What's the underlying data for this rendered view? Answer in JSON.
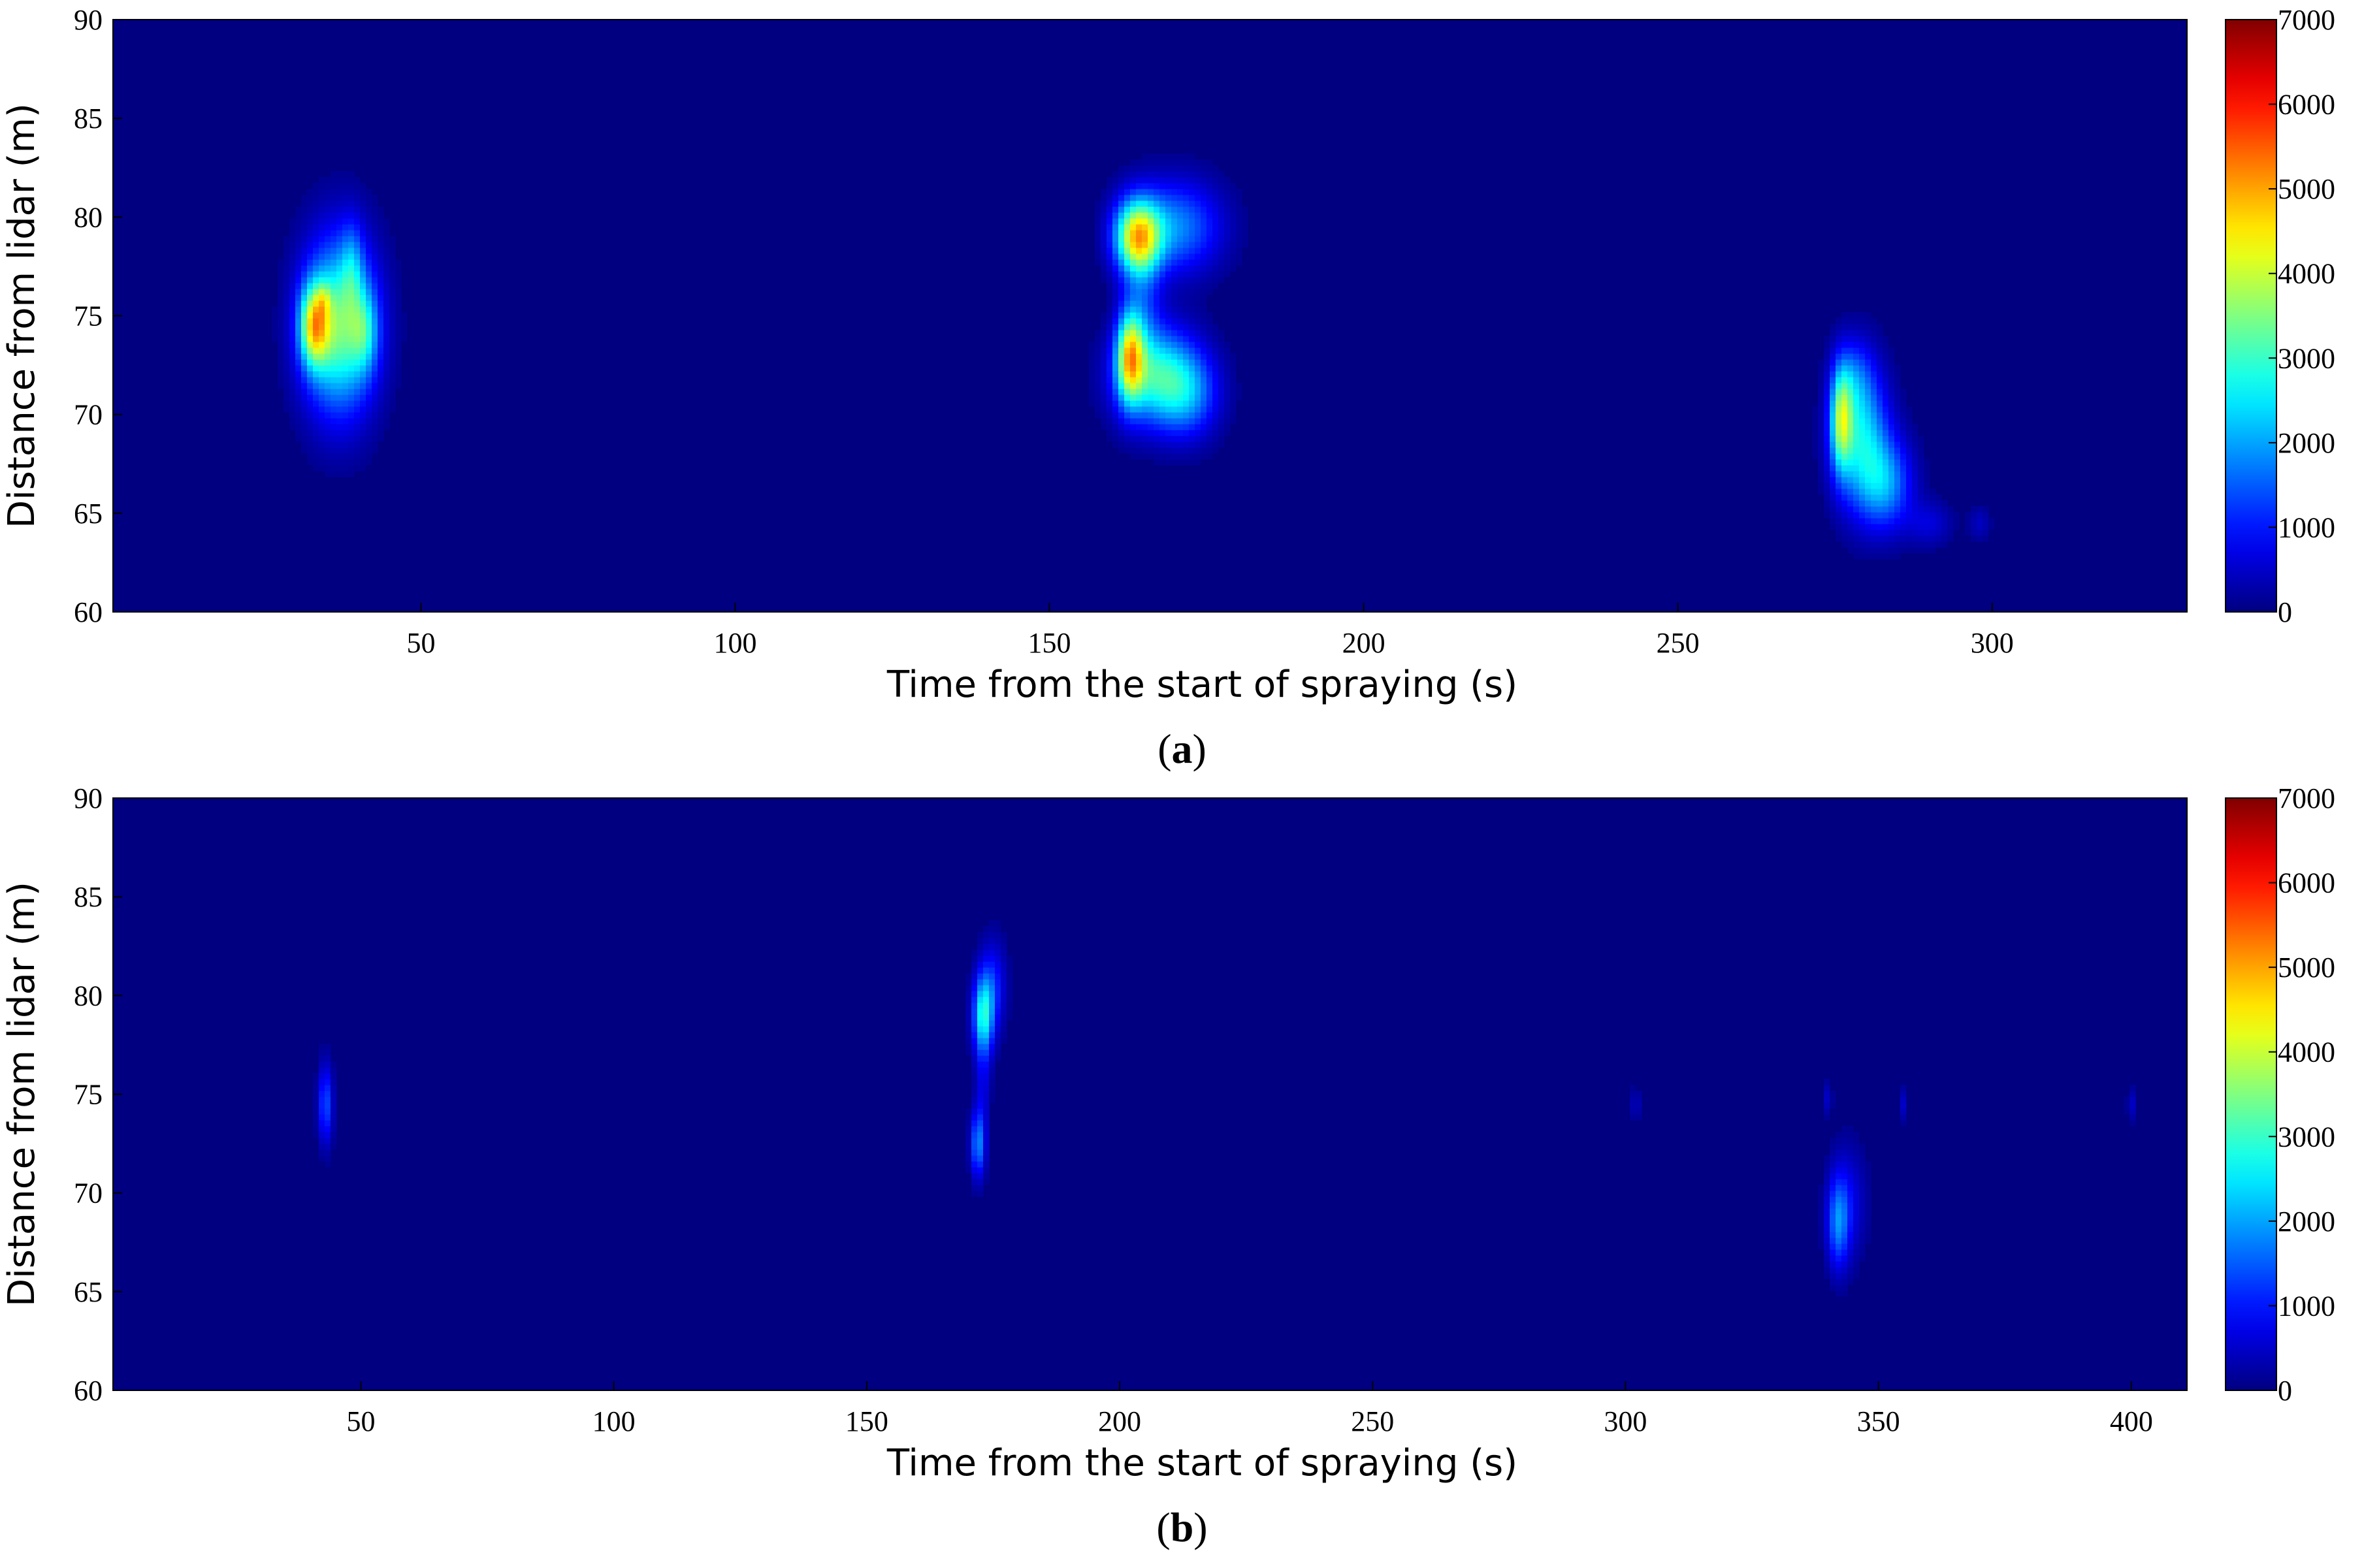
{
  "colors": {
    "background": "#00008f",
    "frame": "#000000"
  },
  "colormap": "jet",
  "chart_data": [
    {
      "id": "a",
      "caption_letter": "a",
      "type": "heatmap",
      "xlabel": "Time from the start of spraying (s)",
      "ylabel": "Distance from lidar (m)",
      "xlim": [
        1,
        331
      ],
      "ylim": [
        60,
        90
      ],
      "xticks": [
        50,
        100,
        150,
        200,
        250,
        300
      ],
      "yticks": [
        60,
        65,
        70,
        75,
        80,
        85,
        90
      ],
      "colorbar": {
        "range": [
          0,
          7000
        ],
        "ticks": [
          0,
          1000,
          2000,
          3000,
          4000,
          5000,
          6000,
          7000
        ]
      },
      "plumes": [
        {
          "t": 37,
          "d": 74.5,
          "st": 4.0,
          "sd": 3.0,
          "peak": 3400
        },
        {
          "t": 33,
          "d": 74.5,
          "st": 1.6,
          "sd": 1.4,
          "peak": 3200
        },
        {
          "t": 34.5,
          "d": 75.8,
          "st": 0.8,
          "sd": 0.6,
          "peak": 800
        },
        {
          "t": 41,
          "d": 74.2,
          "st": 1.5,
          "sd": 1.4,
          "peak": 1300
        },
        {
          "t": 39,
          "d": 77.5,
          "st": 1.2,
          "sd": 1.6,
          "peak": 900
        },
        {
          "t": 164,
          "d": 79.0,
          "st": 2.5,
          "sd": 1.3,
          "peak": 4100
        },
        {
          "t": 170,
          "d": 79.5,
          "st": 5.0,
          "sd": 1.6,
          "peak": 1800
        },
        {
          "t": 162.8,
          "d": 73.0,
          "st": 1.5,
          "sd": 1.6,
          "peak": 3600
        },
        {
          "t": 167,
          "d": 72.0,
          "st": 4.5,
          "sd": 1.7,
          "peak": 2600
        },
        {
          "t": 172,
          "d": 71.0,
          "st": 3.5,
          "sd": 1.5,
          "peak": 1400
        },
        {
          "t": 165,
          "d": 75.5,
          "st": 2.0,
          "sd": 2.2,
          "peak": 900
        },
        {
          "t": 276,
          "d": 69.8,
          "st": 1.2,
          "sd": 1.8,
          "peak": 2800
        },
        {
          "t": 279,
          "d": 69.0,
          "st": 3.0,
          "sd": 2.4,
          "peak": 2400
        },
        {
          "t": 283,
          "d": 66.5,
          "st": 3.0,
          "sd": 1.6,
          "peak": 1800
        },
        {
          "t": 278,
          "d": 72.0,
          "st": 2.0,
          "sd": 1.3,
          "peak": 800
        },
        {
          "t": 290,
          "d": 64.5,
          "st": 2.5,
          "sd": 0.8,
          "peak": 600
        },
        {
          "t": 298,
          "d": 64.5,
          "st": 1.2,
          "sd": 0.6,
          "peak": 450
        }
      ]
    },
    {
      "id": "b",
      "caption_letter": "b",
      "type": "heatmap",
      "xlabel": "Time from the start of spraying (s)",
      "ylabel": "Distance from lidar (m)",
      "xlim": [
        1,
        411
      ],
      "ylim": [
        60,
        90
      ],
      "xticks": [
        50,
        100,
        150,
        200,
        250,
        300,
        350,
        400
      ],
      "yticks": [
        60,
        65,
        70,
        75,
        80,
        85,
        90
      ],
      "colorbar": {
        "range": [
          0,
          7000
        ],
        "ticks": [
          0,
          1000,
          2000,
          3000,
          4000,
          5000,
          6000,
          7000
        ]
      },
      "plumes": [
        {
          "t": 43,
          "d": 74.5,
          "st": 1.0,
          "sd": 1.4,
          "peak": 1400
        },
        {
          "t": 173,
          "d": 79.0,
          "st": 1.4,
          "sd": 1.4,
          "peak": 2600
        },
        {
          "t": 175,
          "d": 80.5,
          "st": 1.8,
          "sd": 1.6,
          "peak": 1000
        },
        {
          "t": 172,
          "d": 72.5,
          "st": 1.0,
          "sd": 1.2,
          "peak": 1800
        },
        {
          "t": 173,
          "d": 75.5,
          "st": 1.0,
          "sd": 1.5,
          "peak": 600
        },
        {
          "t": 342,
          "d": 68.5,
          "st": 1.5,
          "sd": 1.6,
          "peak": 1500
        },
        {
          "t": 344,
          "d": 69.5,
          "st": 2.5,
          "sd": 2.0,
          "peak": 700
        },
        {
          "t": 302,
          "d": 74.5,
          "st": 0.6,
          "sd": 0.6,
          "peak": 500
        },
        {
          "t": 340,
          "d": 74.8,
          "st": 0.6,
          "sd": 0.6,
          "peak": 500
        },
        {
          "t": 355,
          "d": 74.5,
          "st": 0.6,
          "sd": 0.6,
          "peak": 500
        },
        {
          "t": 400,
          "d": 74.5,
          "st": 0.6,
          "sd": 0.6,
          "peak": 500
        }
      ]
    }
  ]
}
